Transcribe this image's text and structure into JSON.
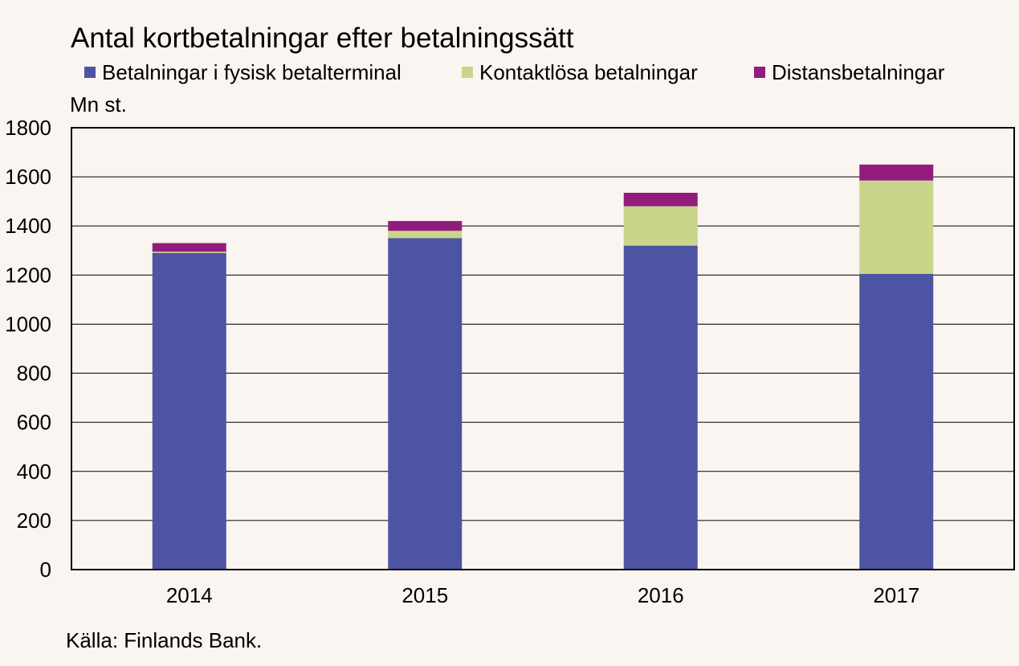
{
  "chart_data": {
    "type": "bar",
    "stacked": true,
    "title": "Antal kortbetalningar efter betalningssätt",
    "unit_label": "Mn st.",
    "source": "Källa: Finlands Bank.",
    "categories": [
      "2014",
      "2015",
      "2016",
      "2017"
    ],
    "series": [
      {
        "name": "Betalningar i fysisk betalterminal",
        "color": "#4d55a3",
        "values": [
          1290,
          1350,
          1320,
          1205
        ]
      },
      {
        "name": "Kontaktlösa betalningar",
        "color": "#c9d58a",
        "values": [
          5,
          30,
          160,
          380
        ]
      },
      {
        "name": "Distansbetalningar",
        "color": "#921c7e",
        "values": [
          35,
          40,
          55,
          65
        ]
      }
    ],
    "ylim": [
      0,
      1800
    ],
    "yticks": [
      0,
      200,
      400,
      600,
      800,
      1000,
      1200,
      1400,
      1600,
      1800
    ],
    "grid": true,
    "legend_position": "top"
  }
}
